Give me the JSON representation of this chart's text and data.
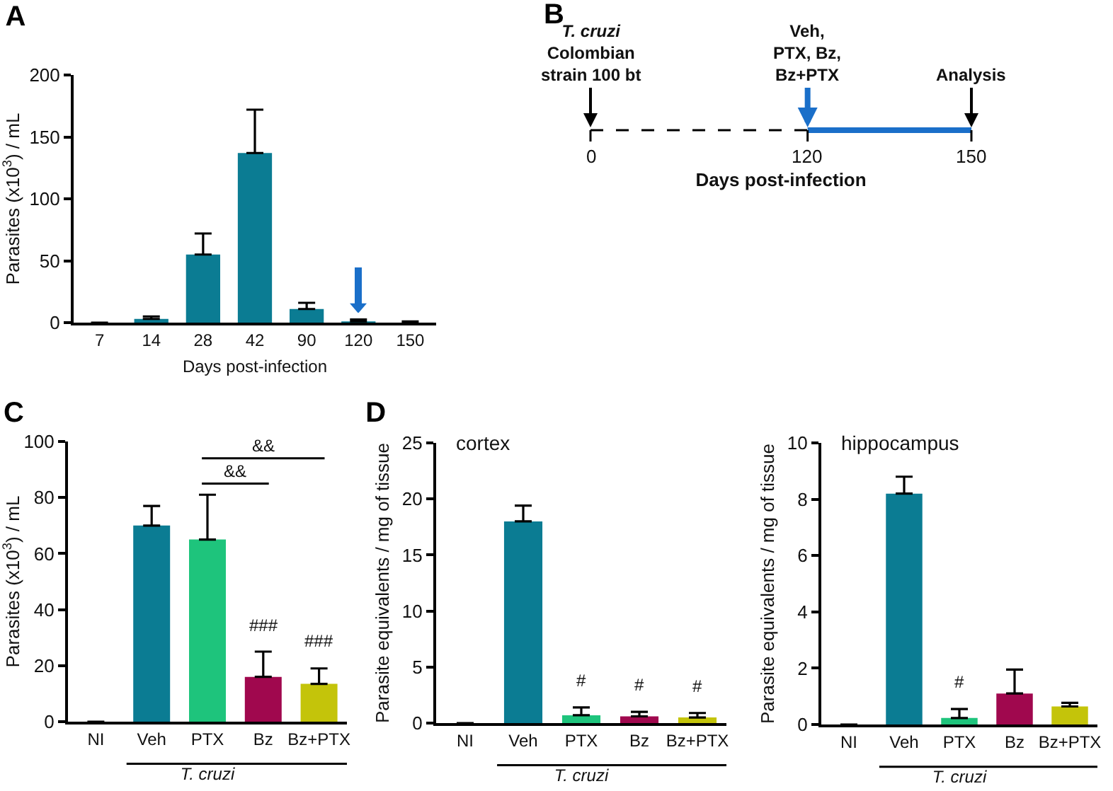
{
  "chart_data": [
    {
      "type": "bar",
      "title": "A",
      "xlabel": "Days post-infection",
      "ylabel": "Parasites (x10$^{3}$) / mL",
      "categories": [
        "7",
        "14",
        "28",
        "42",
        "90",
        "120",
        "150"
      ],
      "values": [
        0,
        3,
        55,
        137,
        11,
        1,
        0
      ],
      "errors": [
        null,
        [
          3,
          5
        ],
        [
          55,
          72
        ],
        [
          137,
          172
        ],
        [
          11,
          16
        ],
        [
          1,
          2.5
        ],
        [
          0,
          1
        ]
      ],
      "color": "#0b7c93",
      "ylim": [
        0,
        200
      ],
      "yticks": [
        0,
        50,
        100,
        150,
        200
      ]
    },
    {
      "type": "other",
      "title": "B",
      "xlabel": "Days post-infection",
      "annotations": [
        "T. cruzi\nColombian\nstrain 100 bt",
        "Veh,\nPTX, Bz,\nBz+PTX",
        "Analysis",
        "0",
        "120",
        "150"
      ]
    },
    {
      "type": "bar",
      "title": "C",
      "xlabel": "T. cruzi",
      "ylabel": "Parasites (x10$^{3}$) / mL",
      "categories": [
        "NI",
        "Veh",
        "PTX",
        "Bz",
        "Bz+PTX"
      ],
      "values": [
        0,
        70,
        65,
        16,
        13.5
      ],
      "errors": [
        null,
        [
          70,
          77
        ],
        [
          65,
          81
        ],
        [
          16,
          25
        ],
        [
          13.5,
          19
        ]
      ],
      "colors": [
        "#0b7c93",
        "#0b7c93",
        "#1ec47c",
        "#a0084e",
        "#c4c40a"
      ],
      "ylim": [
        0,
        100
      ],
      "yticks": [
        0,
        20,
        40,
        60,
        80,
        100
      ],
      "annotations": [
        "###",
        "###",
        "&&",
        "&&"
      ]
    },
    {
      "type": "bar",
      "title": "D",
      "xlabel": "T. cruzi",
      "ylabel": "Parasite equivalents / mg of tissue",
      "categories": [
        "NI",
        "Veh",
        "PTX",
        "Bz",
        "Bz+PTX"
      ],
      "values": [
        0,
        18,
        0.7,
        0.6,
        0.5
      ],
      "errors": [
        null,
        [
          18,
          19.4
        ],
        [
          0.7,
          1.4
        ],
        [
          0.6,
          1.0
        ],
        [
          0.5,
          0.9
        ]
      ],
      "colors": [
        "#0b7c93",
        "#0b7c93",
        "#1ec47c",
        "#a0084e",
        "#c4c40a"
      ],
      "ylim": [
        0,
        25
      ],
      "yticks": [
        0,
        5,
        10,
        15,
        20,
        25
      ],
      "annotations": [
        "#",
        "#",
        "#",
        "cortex"
      ]
    },
    {
      "type": "bar",
      "xlabel": "T. cruzi",
      "ylabel": "Parasite equivalents / mg of tissue",
      "categories": [
        "NI",
        "Veh",
        "PTX",
        "Bz",
        "Bz+PTX"
      ],
      "values": [
        0,
        8.2,
        0.23,
        1.1,
        0.64
      ],
      "errors": [
        null,
        [
          8.2,
          8.8
        ],
        [
          0.23,
          0.55
        ],
        [
          1.1,
          1.95
        ],
        [
          0.64,
          0.77
        ]
      ],
      "colors": [
        "#0b7c93",
        "#0b7c93",
        "#1ec47c",
        "#a0084e",
        "#c4c40a"
      ],
      "ylim": [
        0,
        10
      ],
      "yticks": [
        0,
        2,
        4,
        6,
        8,
        10
      ],
      "annotations": [
        "#",
        "hippocampus"
      ]
    }
  ]
}
